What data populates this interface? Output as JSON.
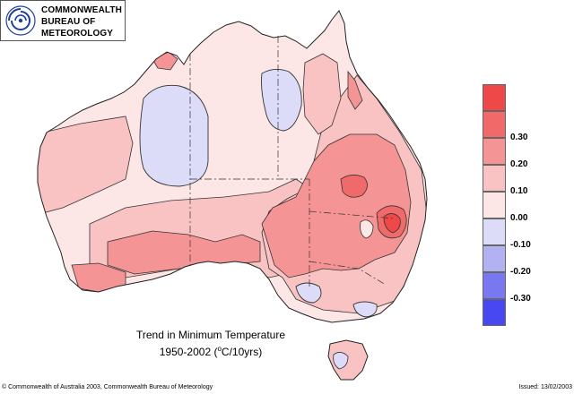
{
  "header": {
    "logo_lines": [
      "COMMONWEALTH",
      "BUREAU OF",
      "METEOROLOGY"
    ],
    "logo_icon": "bom-swirl-logo-icon"
  },
  "map": {
    "title_line1": "Trend in Minimum Temperature",
    "title_line2_prefix": "1950-2002 (",
    "title_line2_sup": "o",
    "title_line2_suffix": "C/10yrs)",
    "region": "Australia"
  },
  "legend": {
    "items": [
      {
        "label": "",
        "color": "#ee4848"
      },
      {
        "label": "0.30",
        "color": "#f16a6a"
      },
      {
        "label": "0.20",
        "color": "#f59494"
      },
      {
        "label": "0.10",
        "color": "#fac3c3"
      },
      {
        "label": "0.00",
        "color": "#fde6e6"
      },
      {
        "label": "-0.10",
        "color": "#dcdcf8"
      },
      {
        "label": "-0.20",
        "color": "#b2b2f2"
      },
      {
        "label": "-0.30",
        "color": "#7878f0"
      },
      {
        "label": "",
        "color": "#4848f2"
      }
    ]
  },
  "footer": {
    "copyright": "© Commonwealth of Australia 2003, Commonwealth Bureau of Meteorology",
    "issued": "Issued: 13/02/2003"
  }
}
